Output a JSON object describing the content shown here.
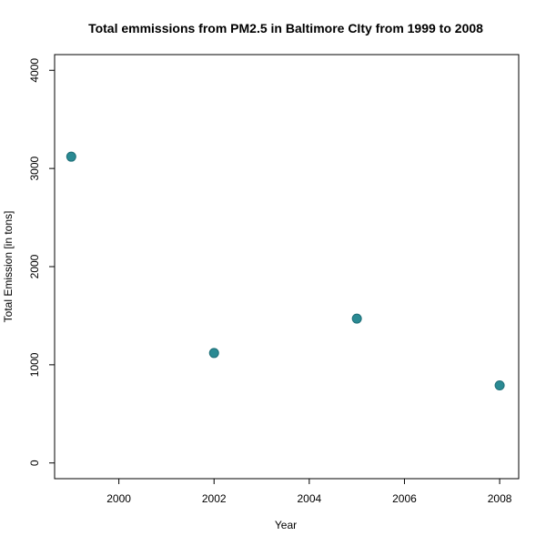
{
  "chart_data": {
    "type": "scatter",
    "title": "Total emmissions from PM2.5 in Baltimore CIty from 1999 to 2008",
    "xlabel": "Year",
    "ylabel": "Total Emission [in tons]",
    "x": [
      1999,
      2002,
      2005,
      2008
    ],
    "y": [
      3120,
      1120,
      1470,
      790
    ],
    "xlim": [
      1998.65,
      2008.4
    ],
    "ylim": [
      -160,
      4160
    ],
    "x_ticks": [
      2000,
      2002,
      2004,
      2006,
      2008
    ],
    "y_ticks": [
      0,
      1000,
      2000,
      3000,
      4000
    ],
    "x_tick_labels": [
      "2000",
      "2002",
      "2004",
      "2006",
      "2008"
    ],
    "y_tick_labels": [
      "0",
      "1000",
      "2000",
      "3000",
      "4000"
    ],
    "grid": false,
    "legend": "none",
    "point_color": "#2A8A93",
    "point_edge_color": "#1E6E77"
  }
}
